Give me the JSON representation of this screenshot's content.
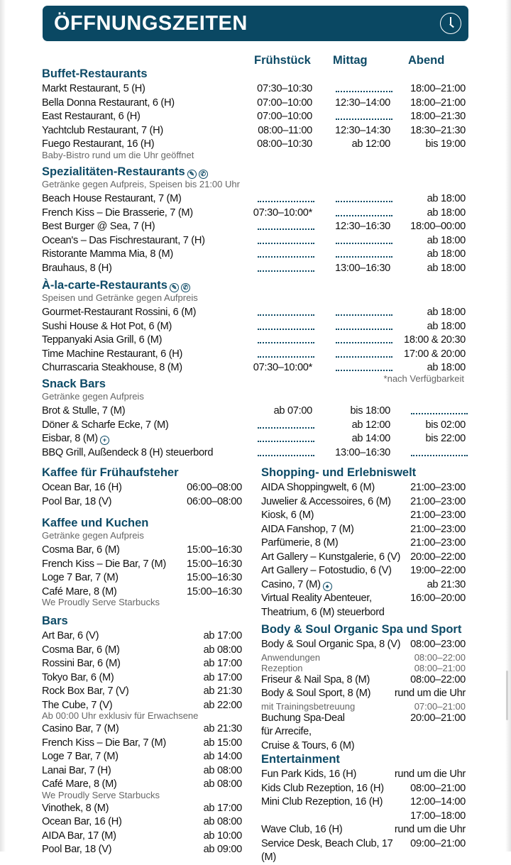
{
  "title": "ÖFFNUNGSZEITEN",
  "header_icon": "clock-icon",
  "accent": "#0a4863",
  "columns": [
    "Frühstück",
    "Mittag",
    "Abend"
  ],
  "top": [
    {
      "title": "Buffet-Restaurants",
      "rows": [
        {
          "name": "Markt Restaurant, 5 (H)",
          "times": [
            "07:30–10:30",
            null,
            "18:00–21:00"
          ]
        },
        {
          "name": "Bella Donna Restaurant, 6 (H)",
          "times": [
            "07:00–10:00",
            "12:30–14:00",
            "18:00–21:00"
          ]
        },
        {
          "name": "East Restaurant, 6 (H)",
          "times": [
            "07:00–10:00",
            null,
            "18:00–21:30"
          ]
        },
        {
          "name": "Yachtclub Restaurant, 7 (H)",
          "times": [
            "08:00–11:00",
            "12:30–14:30",
            "18:30–21:30"
          ]
        },
        {
          "name": "Fuego Restaurant, 16 (H)",
          "times": [
            "08:00–10:30",
            "ab 12:00",
            "bis 19:00"
          ],
          "after": "Baby-Bistro rund um die Uhr geöffnet"
        }
      ]
    },
    {
      "title": "Spezialitäten-Restaurants",
      "icons": [
        "reservation-icon",
        "phone-icon"
      ],
      "note": "Getränke gegen Aufpreis, Speisen bis 21:00 Uhr",
      "rows": [
        {
          "name": "Beach House Restaurant, 7 (M)",
          "times": [
            null,
            null,
            "ab 18:00"
          ]
        },
        {
          "name": "French Kiss – Die Brasserie, 7 (M)",
          "times": [
            "07:30–10:00*",
            null,
            "ab 18:00"
          ]
        },
        {
          "name": "Best Burger @ Sea, 7 (H)",
          "times": [
            null,
            "12:30–16:30",
            "18:00–00:00"
          ]
        },
        {
          "name": "Ocean's – Das Fischrestaurant, 7 (H)",
          "times": [
            null,
            null,
            "ab 18:00"
          ]
        },
        {
          "name": "Ristorante Mamma Mia, 8 (M)",
          "times": [
            null,
            null,
            "ab 18:00"
          ]
        },
        {
          "name": "Brauhaus, 8 (H)",
          "times": [
            null,
            "13:00–16:30",
            "ab 18:00"
          ]
        }
      ]
    },
    {
      "title": "À-la-carte-Restaurants",
      "icons": [
        "reservation-icon",
        "phone-icon"
      ],
      "note": "Speisen und Getränke gegen Aufpreis",
      "rows": [
        {
          "name": "Gourmet-Restaurant Rossini, 6 (M)",
          "times": [
            null,
            null,
            "ab 18:00"
          ]
        },
        {
          "name": "Sushi House & Hot Pot, 6 (M)",
          "times": [
            null,
            null,
            "ab 18:00"
          ]
        },
        {
          "name": "Teppanyaki Asia Grill, 6 (M)",
          "times": [
            null,
            null,
            "18:00 & 20:30"
          ]
        },
        {
          "name": "Time Machine Restaurant, 6 (H)",
          "times": [
            null,
            null,
            "17:00 & 20:00"
          ]
        },
        {
          "name": "Churrascaria Steakhouse, 8 (M)",
          "times": [
            "07:30–10:00*",
            null,
            "ab 18:00"
          ]
        }
      ]
    },
    {
      "title": "Snack Bars",
      "note": "Getränke gegen Aufpreis",
      "rows": [
        {
          "name": "Brot & Stulle, 7 (M)",
          "times": [
            "ab 07:00",
            "bis 18:00",
            null
          ]
        },
        {
          "name": "Döner & Scharfe Ecke, 7 (M)",
          "times": [
            null,
            "ab 12:00",
            "bis 02:00"
          ]
        },
        {
          "name": "Eisbar, 8 (M)",
          "icon": "plus-circle-icon",
          "times": [
            null,
            "ab 14:00",
            "bis 22:00"
          ]
        },
        {
          "name": "BBQ Grill, Außendeck 8 (H) steuerbord",
          "times": [
            null,
            "13:00–16:30",
            null
          ]
        }
      ]
    }
  ],
  "footnote": "*nach Verfügbarkeit",
  "left": [
    {
      "title": "Kaffee für Frühaufsteher",
      "rows": [
        {
          "name": "Ocean Bar, 16 (H)",
          "time": "06:00–08:00"
        },
        {
          "name": "Pool Bar, 18 (V)",
          "time": "06:00–08:00"
        }
      ]
    },
    {
      "title": "Kaffee und Kuchen",
      "note": "Getränke gegen Aufpreis",
      "rows": [
        {
          "name": "Cosma Bar, 6 (M)",
          "time": "15:00–16:30"
        },
        {
          "name": "French Kiss – Die Bar, 7 (M)",
          "time": "15:00–16:30"
        },
        {
          "name": "Loge 7 Bar, 7 (M)",
          "time": "15:00–16:30"
        },
        {
          "name": "Café Mare, 8 (M)",
          "time": "15:00–16:30",
          "after": "We Proudly Serve Starbucks"
        }
      ]
    },
    {
      "title": "Bars",
      "rows": [
        {
          "name": "Art Bar, 6 (V)",
          "time": "ab 17:00"
        },
        {
          "name": "Cosma Bar, 6 (M)",
          "time": "ab 08:00"
        },
        {
          "name": "Rossini Bar, 6 (M)",
          "time": "ab 17:00"
        },
        {
          "name": "Tokyo Bar, 6 (M)",
          "time": "ab 17:00"
        },
        {
          "name": "Rock Box Bar, 7 (V)",
          "time": "ab 21:30"
        },
        {
          "name": "The Cube, 7 (V)",
          "time": "ab 22:00",
          "after": "Ab 00:00 Uhr exklusiv für Erwachsene"
        },
        {
          "name": "Casino Bar, 7 (M)",
          "time": "ab 21:30"
        },
        {
          "name": "French Kiss – Die Bar, 7 (M)",
          "time": "ab 15:00"
        },
        {
          "name": "Loge 7 Bar, 7 (M)",
          "time": "ab 14:00"
        },
        {
          "name": "Lanai Bar, 7 (H)",
          "time": "ab 08:00"
        },
        {
          "name": "Café Mare, 8 (M)",
          "time": "ab 08:00",
          "after": "We Proudly Serve Starbucks"
        },
        {
          "name": "Vinothek, 8 (M)",
          "time": "ab 17:00"
        },
        {
          "name": "Ocean Bar, 16 (H)",
          "time": "ab 08:00"
        },
        {
          "name": "AIDA Bar, 17 (M)",
          "time": "ab 10:00"
        },
        {
          "name": "Pool Bar, 18 (V)",
          "time": "ab 09:00"
        }
      ]
    }
  ],
  "right": [
    {
      "title": "Shopping- und Erlebniswelt",
      "rows": [
        {
          "name": "AIDA Shoppingwelt, 6 (M)",
          "time": "21:00–23:00"
        },
        {
          "name": "Juwelier & Accessoires, 6 (M)",
          "time": "21:00–23:00"
        },
        {
          "name": "Kiosk, 6 (M)",
          "time": "21:00–23:00"
        },
        {
          "name": "AIDA Fanshop, 7 (M)",
          "time": "21:00–23:00"
        },
        {
          "name": "Parfümerie, 8 (M)",
          "time": "21:00–23:00"
        },
        {
          "name": "Art Gallery – Kunstgalerie, 6 (V)",
          "time": "20:00–22:00"
        },
        {
          "name": "Art Gallery – Fotostudio, 6 (V)",
          "time": "19:00–22:00"
        },
        {
          "name": "Casino, 7 (M)",
          "icon": "casino-chip-icon",
          "time": "ab 21:30"
        },
        {
          "name": "Virtual Reality Abenteuer,\nTheatrium, 6 (M) steuerbord",
          "time": "16:00–20:00"
        }
      ]
    },
    {
      "title": "Body & Soul Organic Spa und Sport",
      "rows": [
        {
          "name": "Body & Soul Organic Spa, 8 (V)",
          "time": "08:00–23:00",
          "subs": [
            {
              "label": "Anwendungen",
              "time": "08:00–22:00"
            },
            {
              "label": "Rezeption",
              "time": "08:00–21:00"
            }
          ]
        },
        {
          "name": "Friseur & Nail Spa, 8 (M)",
          "time": "08:00–22:00"
        },
        {
          "name": "Body & Soul Sport, 8 (M)",
          "time": "rund um die Uhr",
          "subs": [
            {
              "label": "mit Trainingsbetreuung",
              "time": "07:00–21:00"
            }
          ]
        },
        {
          "name": "Buchung Spa-Deal\nfür Arrecife,\nCruise & Tours, 6 (M)",
          "time": "20:00–21:00"
        }
      ]
    },
    {
      "title": "Entertainment",
      "rows": [
        {
          "name": "Fun Park Kids, 16 (H)",
          "time": "rund um die Uhr"
        },
        {
          "name": "Kids Club Rezeption, 16 (H)",
          "time": "08:00–21:00"
        },
        {
          "name": "Mini Club Rezeption, 16 (H)",
          "time": "12:00–14:00\n17:00–18:00"
        },
        {
          "name": "Wave Club, 16 (H)",
          "time": "rund um die Uhr"
        },
        {
          "name": "Service Desk, Beach Club, 17 (M)",
          "time": "09:00–21:00"
        }
      ]
    }
  ]
}
